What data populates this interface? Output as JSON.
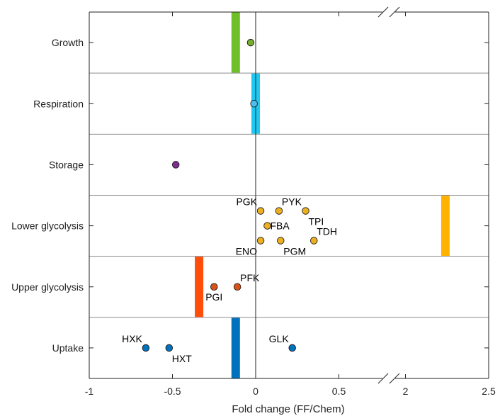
{
  "chart_data": {
    "type": "scatter",
    "xlabel": "Fold change (FF/Chem)",
    "xlim": [
      -1,
      2.5
    ],
    "axis_break": [
      0.8,
      1.9
    ],
    "xticks": [
      {
        "value": -1,
        "label": "-1"
      },
      {
        "value": -0.5,
        "label": "-0.5"
      },
      {
        "value": 0,
        "label": "0"
      },
      {
        "value": 0.5,
        "label": "0.5"
      },
      {
        "value": 2,
        "label": "2"
      },
      {
        "value": 2.5,
        "label": "2.5"
      }
    ],
    "categories": [
      "Growth",
      "Respiration",
      "Storage",
      "Lower glycolysis",
      "Upper glycolysis",
      "Uptake"
    ],
    "colors": {
      "Growth": "#77ac30",
      "Respiration": "#4dbeee",
      "Storage": "#7e2f8e",
      "Lower glycolysis": "#edb120",
      "Upper glycolysis": "#d95319",
      "Uptake": "#0072bd",
      "bar_growth": "#6ebf2a",
      "bar_respiration": "#1ec8f0",
      "bar_lower": "#ffb300",
      "bar_upper": "#ff4d0a",
      "bar_uptake": "#0072bd"
    },
    "bars": [
      {
        "category": "Growth",
        "value": -0.12,
        "color": "#6ebf2a"
      },
      {
        "category": "Respiration",
        "value": 0.0,
        "color": "#1ec8f0"
      },
      {
        "category": "Lower glycolysis",
        "value": 2.24,
        "color": "#ffb300"
      },
      {
        "category": "Upper glycolysis",
        "value": -0.34,
        "color": "#ff4d0a"
      },
      {
        "category": "Uptake",
        "value": -0.12,
        "color": "#0072bd"
      }
    ],
    "points": [
      {
        "category": "Growth",
        "name": "",
        "x": -0.03,
        "dy": 0
      },
      {
        "category": "Respiration",
        "name": "",
        "x": -0.01,
        "dy": 0
      },
      {
        "category": "Storage",
        "name": "",
        "x": -0.48,
        "dy": 0
      },
      {
        "category": "Lower glycolysis",
        "name": "PGK",
        "x": 0.03,
        "dy": -21,
        "label_pos": "tl"
      },
      {
        "category": "Lower glycolysis",
        "name": "PYK",
        "x": 0.14,
        "dy": -21,
        "label_pos": "tr"
      },
      {
        "category": "Lower glycolysis",
        "name": "TPI",
        "x": 0.3,
        "dy": -21,
        "label_pos": "br"
      },
      {
        "category": "Lower glycolysis",
        "name": "FBA",
        "x": 0.07,
        "dy": 0,
        "label_pos": "r"
      },
      {
        "category": "Lower glycolysis",
        "name": "TDH",
        "x": 0.35,
        "dy": 21,
        "label_pos": "tr"
      },
      {
        "category": "Lower glycolysis",
        "name": "ENO",
        "x": 0.03,
        "dy": 21,
        "label_pos": "bl"
      },
      {
        "category": "Lower glycolysis",
        "name": "PGM",
        "x": 0.15,
        "dy": 21,
        "label_pos": "br"
      },
      {
        "category": "Upper glycolysis",
        "name": "PFK",
        "x": -0.11,
        "dy": 0,
        "label_pos": "tr"
      },
      {
        "category": "Upper glycolysis",
        "name": "PGI",
        "x": -0.25,
        "dy": 0,
        "label_pos": "b"
      },
      {
        "category": "Uptake",
        "name": "HXK",
        "x": -0.66,
        "dy": 0,
        "label_pos": "tl"
      },
      {
        "category": "Uptake",
        "name": "HXT",
        "x": -0.52,
        "dy": 0,
        "label_pos": "br"
      },
      {
        "category": "Uptake",
        "name": "GLK",
        "x": 0.22,
        "dy": 0,
        "label_pos": "tl"
      }
    ]
  }
}
